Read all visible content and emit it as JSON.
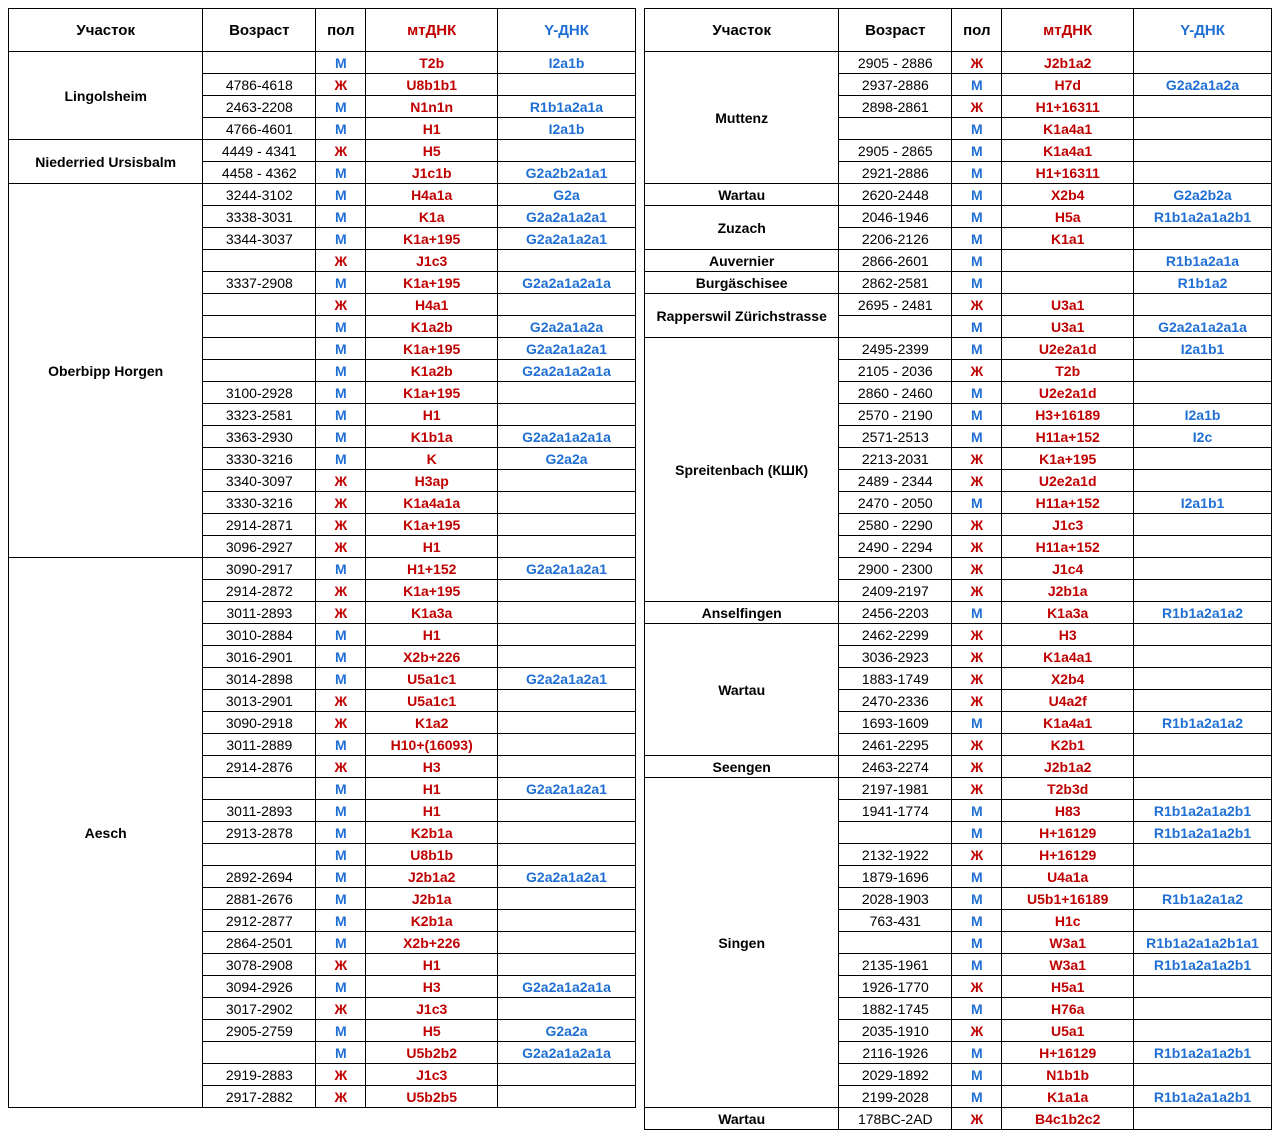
{
  "headers": {
    "site": "Участок",
    "age": "Возраст",
    "sex": "пол",
    "mt": "мтДНК",
    "y": "Y-ДНК"
  },
  "colors": {
    "mt": "#c00000",
    "y": "#1f6fd4",
    "border": "#000000",
    "bg": "#ffffff"
  },
  "sex_glyph": {
    "M": "М",
    "F": "Ж"
  },
  "left": [
    {
      "site": "Lingolsheim",
      "rows": [
        {
          "age": "",
          "sex": "M",
          "mt": "T2b",
          "y": "I2a1b"
        },
        {
          "age": "4786-4618",
          "sex": "F",
          "mt": "U8b1b1",
          "y": ""
        },
        {
          "age": "2463-2208",
          "sex": "M",
          "mt": "N1n1n",
          "y": "R1b1a2a1a"
        },
        {
          "age": "4766-4601",
          "sex": "M",
          "mt": "H1",
          "y": "I2a1b"
        }
      ]
    },
    {
      "site": "Niederried Ursisbalm",
      "rows": [
        {
          "age": "4449 - 4341",
          "sex": "F",
          "mt": "H5",
          "y": ""
        },
        {
          "age": "4458 - 4362",
          "sex": "M",
          "mt": "J1c1b",
          "y": "G2a2b2a1a1"
        }
      ]
    },
    {
      "site": "Oberbipp Horgen",
      "rows": [
        {
          "age": "3244-3102",
          "sex": "M",
          "mt": "H4a1a",
          "y": "G2a"
        },
        {
          "age": "3338-3031",
          "sex": "M",
          "mt": "K1a",
          "y": "G2a2a1a2a1"
        },
        {
          "age": "3344-3037",
          "sex": "M",
          "mt": "K1a+195",
          "y": "G2a2a1a2a1"
        },
        {
          "age": "",
          "sex": "F",
          "mt": "J1c3",
          "y": ""
        },
        {
          "age": "3337-2908",
          "sex": "M",
          "mt": "K1a+195",
          "y": "G2a2a1a2a1a"
        },
        {
          "age": "",
          "sex": "F",
          "mt": "H4a1",
          "y": ""
        },
        {
          "age": "",
          "sex": "M",
          "mt": "K1a2b",
          "y": "G2a2a1a2a"
        },
        {
          "age": "",
          "sex": "M",
          "mt": "K1a+195",
          "y": "G2a2a1a2a1"
        },
        {
          "age": "",
          "sex": "M",
          "mt": "K1a2b",
          "y": "G2a2a1a2a1a"
        },
        {
          "age": "3100-2928",
          "sex": "M",
          "mt": "K1a+195",
          "y": ""
        },
        {
          "age": "3323-2581",
          "sex": "M",
          "mt": "H1",
          "y": ""
        },
        {
          "age": "3363-2930",
          "sex": "M",
          "mt": "K1b1a",
          "y": "G2a2a1a2a1a"
        },
        {
          "age": "3330-3216",
          "sex": "M",
          "mt": "K",
          "y": "G2a2a"
        },
        {
          "age": "3340-3097",
          "sex": "F",
          "mt": "H3ap",
          "y": ""
        },
        {
          "age": "3330-3216",
          "sex": "F",
          "mt": "K1a4a1a",
          "y": ""
        },
        {
          "age": "2914-2871",
          "sex": "F",
          "mt": "K1a+195",
          "y": ""
        },
        {
          "age": "3096-2927",
          "sex": "F",
          "mt": "H1",
          "y": ""
        }
      ]
    },
    {
      "site": "Aesch",
      "rows": [
        {
          "age": "3090-2917",
          "sex": "M",
          "mt": "H1+152",
          "y": "G2a2a1a2a1"
        },
        {
          "age": "2914-2872",
          "sex": "F",
          "mt": "K1a+195",
          "y": ""
        },
        {
          "age": "3011-2893",
          "sex": "F",
          "mt": "K1a3a",
          "y": ""
        },
        {
          "age": "3010-2884",
          "sex": "M",
          "mt": "H1",
          "y": ""
        },
        {
          "age": "3016-2901",
          "sex": "M",
          "mt": "X2b+226",
          "y": ""
        },
        {
          "age": "3014-2898",
          "sex": "M",
          "mt": "U5a1c1",
          "y": "G2a2a1a2a1"
        },
        {
          "age": "3013-2901",
          "sex": "F",
          "mt": "U5a1c1",
          "y": ""
        },
        {
          "age": "3090-2918",
          "sex": "F",
          "mt": "K1a2",
          "y": ""
        },
        {
          "age": "3011-2889",
          "sex": "M",
          "mt": "H10+(16093)",
          "y": ""
        },
        {
          "age": "2914-2876",
          "sex": "F",
          "mt": "H3",
          "y": ""
        },
        {
          "age": "",
          "sex": "M",
          "mt": "H1",
          "y": "G2a2a1a2a1"
        },
        {
          "age": "3011-2893",
          "sex": "M",
          "mt": "H1",
          "y": ""
        },
        {
          "age": "2913-2878",
          "sex": "M",
          "mt": "K2b1a",
          "y": ""
        },
        {
          "age": "",
          "sex": "M",
          "mt": "U8b1b",
          "y": ""
        },
        {
          "age": "2892-2694",
          "sex": "M",
          "mt": "J2b1a2",
          "y": "G2a2a1a2a1"
        },
        {
          "age": "2881-2676",
          "sex": "M",
          "mt": "J2b1a",
          "y": ""
        },
        {
          "age": "2912-2877",
          "sex": "M",
          "mt": "K2b1a",
          "y": ""
        },
        {
          "age": "2864-2501",
          "sex": "M",
          "mt": "X2b+226",
          "y": ""
        },
        {
          "age": "3078-2908",
          "sex": "F",
          "mt": "H1",
          "y": ""
        },
        {
          "age": "3094-2926",
          "sex": "M",
          "mt": "H3",
          "y": "G2a2a1a2a1a"
        },
        {
          "age": "3017-2902",
          "sex": "F",
          "mt": "J1c3",
          "y": ""
        },
        {
          "age": "2905-2759",
          "sex": "M",
          "mt": "H5",
          "y": "G2a2a"
        },
        {
          "age": "",
          "sex": "M",
          "mt": "U5b2b2",
          "y": "G2a2a1a2a1a"
        },
        {
          "age": "2919-2883",
          "sex": "F",
          "mt": "J1c3",
          "y": ""
        },
        {
          "age": "2917-2882",
          "sex": "F",
          "mt": "U5b2b5",
          "y": ""
        }
      ]
    }
  ],
  "right": [
    {
      "site": "Muttenz",
      "rows": [
        {
          "age": "2905 - 2886",
          "sex": "F",
          "mt": "J2b1a2",
          "y": ""
        },
        {
          "age": "2937-2886",
          "sex": "M",
          "mt": "H7d",
          "y": "G2a2a1a2a"
        },
        {
          "age": "2898-2861",
          "sex": "F",
          "mt": "H1+16311",
          "y": ""
        },
        {
          "age": "",
          "sex": "M",
          "mt": "K1a4a1",
          "y": ""
        },
        {
          "age": "2905 - 2865",
          "sex": "M",
          "mt": "K1a4a1",
          "y": ""
        },
        {
          "age": "2921-2886",
          "sex": "M",
          "mt": "H1+16311",
          "y": ""
        }
      ]
    },
    {
      "site": "Wartau",
      "rows": [
        {
          "age": "2620-2448",
          "sex": "M",
          "mt": "X2b4",
          "y": "G2a2b2a"
        }
      ]
    },
    {
      "site": "Zuzach",
      "rows": [
        {
          "age": "2046-1946",
          "sex": "M",
          "mt": "H5a",
          "y": "R1b1a2a1a2b1"
        },
        {
          "age": "2206-2126",
          "sex": "M",
          "mt": "K1a1",
          "y": ""
        }
      ]
    },
    {
      "site": "Auvernier",
      "rows": [
        {
          "age": "2866-2601",
          "sex": "M",
          "mt": "",
          "y": "R1b1a2a1a"
        }
      ]
    },
    {
      "site": "Burgäschisee",
      "rows": [
        {
          "age": "2862-2581",
          "sex": "M",
          "mt": "",
          "y": "R1b1a2"
        }
      ]
    },
    {
      "site": "Rapperswil Zürichstrasse",
      "rows": [
        {
          "age": "2695 - 2481",
          "sex": "F",
          "mt": "U3a1",
          "y": ""
        },
        {
          "age": "",
          "sex": "M",
          "mt": "U3a1",
          "y": "G2a2a1a2a1a"
        }
      ]
    },
    {
      "site": "Spreitenbach (КШК)",
      "rows": [
        {
          "age": "2495-2399",
          "sex": "M",
          "mt": "U2e2a1d",
          "y": "I2a1b1"
        },
        {
          "age": "2105 - 2036",
          "sex": "F",
          "mt": "T2b",
          "y": ""
        },
        {
          "age": "2860 - 2460",
          "sex": "M",
          "mt": "U2e2a1d",
          "y": ""
        },
        {
          "age": "2570 - 2190",
          "sex": "M",
          "mt": "H3+16189",
          "y": "I2a1b"
        },
        {
          "age": "2571-2513",
          "sex": "M",
          "mt": "H11a+152",
          "y": "I2c"
        },
        {
          "age": "2213-2031",
          "sex": "F",
          "mt": "K1a+195",
          "y": ""
        },
        {
          "age": "2489 - 2344",
          "sex": "F",
          "mt": "U2e2a1d",
          "y": ""
        },
        {
          "age": "2470 - 2050",
          "sex": "M",
          "mt": "H11a+152",
          "y": "I2a1b1"
        },
        {
          "age": "2580 - 2290",
          "sex": "F",
          "mt": "J1c3",
          "y": ""
        },
        {
          "age": "2490 - 2294",
          "sex": "F",
          "mt": "H11a+152",
          "y": ""
        },
        {
          "age": "2900 - 2300",
          "sex": "F",
          "mt": "J1c4",
          "y": ""
        },
        {
          "age": "2409-2197",
          "sex": "F",
          "mt": "J2b1a",
          "y": ""
        }
      ]
    },
    {
      "site": "Anselfingen",
      "rows": [
        {
          "age": "2456-2203",
          "sex": "M",
          "mt": "K1a3a",
          "y": "R1b1a2a1a2"
        }
      ]
    },
    {
      "site": "Wartau",
      "rows": [
        {
          "age": "2462-2299",
          "sex": "F",
          "mt": "H3",
          "y": ""
        },
        {
          "age": "3036-2923",
          "sex": "F",
          "mt": "K1a4a1",
          "y": ""
        },
        {
          "age": "1883-1749",
          "sex": "F",
          "mt": "X2b4",
          "y": ""
        },
        {
          "age": "2470-2336",
          "sex": "F",
          "mt": "U4a2f",
          "y": ""
        },
        {
          "age": "1693-1609",
          "sex": "M",
          "mt": "K1a4a1",
          "y": "R1b1a2a1a2"
        },
        {
          "age": "2461-2295",
          "sex": "F",
          "mt": "K2b1",
          "y": ""
        }
      ]
    },
    {
      "site": "Seengen",
      "rows": [
        {
          "age": "2463-2274",
          "sex": "F",
          "mt": "J2b1a2",
          "y": ""
        }
      ]
    },
    {
      "site": "Singen",
      "rows": [
        {
          "age": "2197-1981",
          "sex": "F",
          "mt": "T2b3d",
          "y": ""
        },
        {
          "age": "1941-1774",
          "sex": "M",
          "mt": "H83",
          "y": "R1b1a2a1a2b1"
        },
        {
          "age": "",
          "sex": "M",
          "mt": "H+16129",
          "y": "R1b1a2a1a2b1"
        },
        {
          "age": "2132-1922",
          "sex": "F",
          "mt": "H+16129",
          "y": ""
        },
        {
          "age": "1879-1696",
          "sex": "M",
          "mt": "U4a1a",
          "y": ""
        },
        {
          "age": "2028-1903",
          "sex": "M",
          "mt": "U5b1+16189",
          "y": "R1b1a2a1a2"
        },
        {
          "age": "763-431",
          "sex": "M",
          "mt": "H1c",
          "y": ""
        },
        {
          "age": "",
          "sex": "M",
          "mt": "W3a1",
          "y": "R1b1a2a1a2b1a1"
        },
        {
          "age": "2135-1961",
          "sex": "M",
          "mt": "W3a1",
          "y": "R1b1a2a1a2b1"
        },
        {
          "age": "1926-1770",
          "sex": "F",
          "mt": "H5a1",
          "y": ""
        },
        {
          "age": "1882-1745",
          "sex": "M",
          "mt": "H76a",
          "y": ""
        },
        {
          "age": "2035-1910",
          "sex": "F",
          "mt": "U5a1",
          "y": ""
        },
        {
          "age": "2116-1926",
          "sex": "M",
          "mt": "H+16129",
          "y": "R1b1a2a1a2b1"
        },
        {
          "age": "2029-1892",
          "sex": "M",
          "mt": "N1b1b",
          "y": ""
        },
        {
          "age": "2199-2028",
          "sex": "M",
          "mt": "K1a1a",
          "y": "R1b1a2a1a2b1"
        }
      ]
    },
    {
      "site": "Wartau",
      "rows": [
        {
          "age": "178BC-2AD",
          "sex": "F",
          "mt": "B4c1b2c2",
          "y": ""
        }
      ]
    }
  ]
}
